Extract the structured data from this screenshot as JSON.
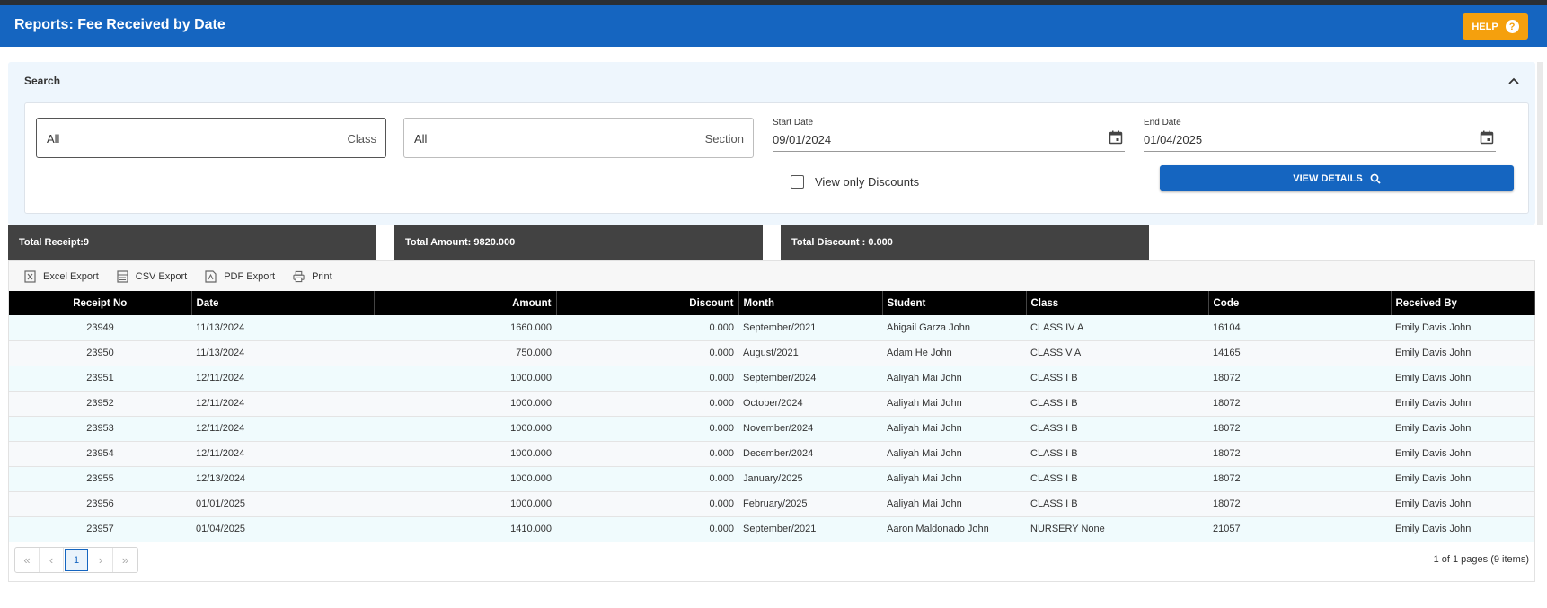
{
  "header": {
    "title": "Reports: Fee Received by Date",
    "help_label": "HELP",
    "help_icon": "question-circle-icon"
  },
  "search": {
    "title": "Search",
    "class_select": {
      "value": "All",
      "label": "Class"
    },
    "section_select": {
      "value": "All",
      "label": "Section"
    },
    "start_date": {
      "label": "Start Date",
      "value": "09/01/2024"
    },
    "end_date": {
      "label": "End Date",
      "value": "01/04/2025"
    },
    "discounts_checkbox": {
      "label": "View only Discounts",
      "checked": false
    },
    "view_button": "VIEW DETAILS"
  },
  "summary": {
    "receipts": "Total Receipt:9",
    "amount": "Total Amount: 9820.000",
    "discount": "Total Discount : 0.000"
  },
  "toolbar": {
    "excel": "Excel Export",
    "csv": "CSV Export",
    "pdf": "PDF Export",
    "print": "Print"
  },
  "table": {
    "columns": [
      "Receipt No",
      "Date",
      "Amount",
      "Discount",
      "Month",
      "Student",
      "Class",
      "Code",
      "Received By"
    ],
    "rows": [
      [
        "23949",
        "11/13/2024",
        "1660.000",
        "0.000",
        "September/2021",
        "Abigail Garza John",
        "CLASS IV A",
        "16104",
        "Emily Davis John"
      ],
      [
        "23950",
        "11/13/2024",
        "750.000",
        "0.000",
        "August/2021",
        "Adam He John",
        "CLASS V A",
        "14165",
        "Emily Davis John"
      ],
      [
        "23951",
        "12/11/2024",
        "1000.000",
        "0.000",
        "September/2024",
        "Aaliyah Mai John",
        "CLASS I B",
        "18072",
        "Emily Davis John"
      ],
      [
        "23952",
        "12/11/2024",
        "1000.000",
        "0.000",
        "October/2024",
        "Aaliyah Mai John",
        "CLASS I B",
        "18072",
        "Emily Davis John"
      ],
      [
        "23953",
        "12/11/2024",
        "1000.000",
        "0.000",
        "November/2024",
        "Aaliyah Mai John",
        "CLASS I B",
        "18072",
        "Emily Davis John"
      ],
      [
        "23954",
        "12/11/2024",
        "1000.000",
        "0.000",
        "December/2024",
        "Aaliyah Mai John",
        "CLASS I B",
        "18072",
        "Emily Davis John"
      ],
      [
        "23955",
        "12/13/2024",
        "1000.000",
        "0.000",
        "January/2025",
        "Aaliyah Mai John",
        "CLASS I B",
        "18072",
        "Emily Davis John"
      ],
      [
        "23956",
        "01/01/2025",
        "1000.000",
        "0.000",
        "February/2025",
        "Aaliyah Mai John",
        "CLASS I B",
        "18072",
        "Emily Davis John"
      ],
      [
        "23957",
        "01/04/2025",
        "1410.000",
        "0.000",
        "September/2021",
        "Aaron Maldonado John",
        "NURSERY None",
        "21057",
        "Emily Davis John"
      ]
    ]
  },
  "pager": {
    "first": "«",
    "prev": "‹",
    "current": "1",
    "next": "›",
    "last": "»",
    "info": "1 of 1 pages (9 items)"
  },
  "colors": {
    "header": "#1565c0",
    "help": "#f5a00d",
    "summary": "#424242",
    "table_head": "#000000"
  }
}
